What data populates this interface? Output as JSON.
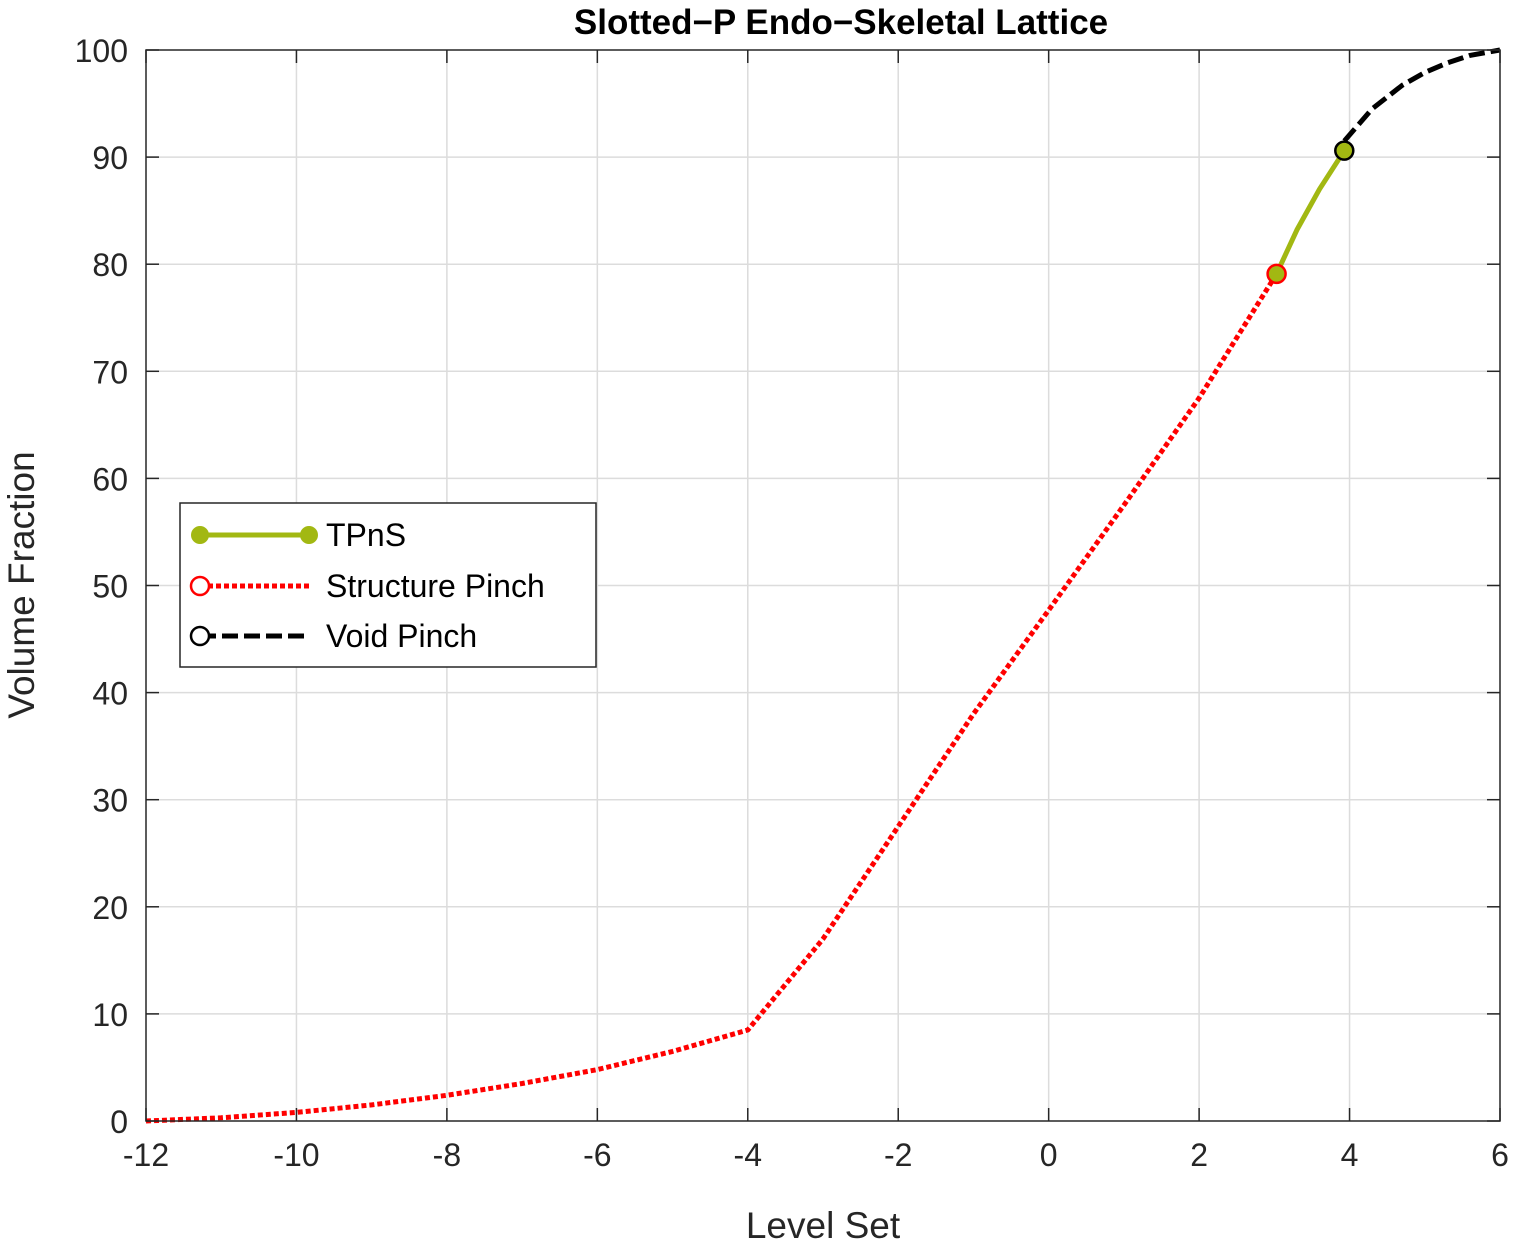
{
  "chart_data": {
    "type": "line",
    "title": "Slotted−P Endo−Skeletal Lattice",
    "xlabel": "Level Set",
    "ylabel": "Volume Fraction",
    "xlim": [
      -12,
      6
    ],
    "ylim": [
      0,
      100
    ],
    "xticks": [
      -12,
      -10,
      -8,
      -6,
      -4,
      -2,
      0,
      2,
      4,
      6
    ],
    "xtick_labels": [
      "-12",
      "-10",
      "-8",
      "-6",
      "-4",
      "-2",
      "0",
      "2",
      "4",
      "6"
    ],
    "yticks": [
      0,
      10,
      20,
      30,
      40,
      50,
      60,
      70,
      80,
      90,
      100
    ],
    "ytick_labels": [
      "0",
      "10",
      "20",
      "30",
      "40",
      "50",
      "60",
      "70",
      "80",
      "90",
      "100"
    ],
    "grid": true,
    "legend_position": "middle-left",
    "series": [
      {
        "name": "TPnS",
        "color": "#a2b812",
        "line_style": "solid",
        "marker": "filled-circle",
        "x": [
          3.03,
          3.3,
          3.6,
          3.93
        ],
        "y": [
          79.1,
          83.2,
          87.0,
          90.6
        ]
      },
      {
        "name": "Structure Pinch",
        "color": "#ff0000",
        "line_style": "dotted",
        "marker": "open-circle",
        "x": [
          -12,
          -11,
          -10,
          -9,
          -8,
          -7,
          -6,
          -5,
          -4,
          -3,
          -2,
          -1,
          0,
          1,
          2,
          3.03
        ],
        "y": [
          0,
          0.3,
          0.8,
          1.5,
          2.4,
          3.5,
          4.8,
          6.5,
          8.5,
          17.0,
          27.5,
          38.0,
          47.7,
          57.5,
          67.5,
          79.1
        ]
      },
      {
        "name": "Void Pinch",
        "color": "#000000",
        "line_style": "dashed",
        "marker": "open-circle",
        "x": [
          3.93,
          4.3,
          4.7,
          5.0,
          5.3,
          5.6,
          6.0
        ],
        "y": [
          91.5,
          94.5,
          96.7,
          97.9,
          98.8,
          99.5,
          100.0
        ]
      }
    ],
    "markers": [
      {
        "series": "Structure Pinch",
        "x": 3.03,
        "y": 79.1,
        "fill": "#a2b812",
        "stroke": "#ff0000"
      },
      {
        "series": "TPnS",
        "x": 3.93,
        "y": 90.6,
        "fill": "#a2b812",
        "stroke": "#000000"
      }
    ]
  }
}
